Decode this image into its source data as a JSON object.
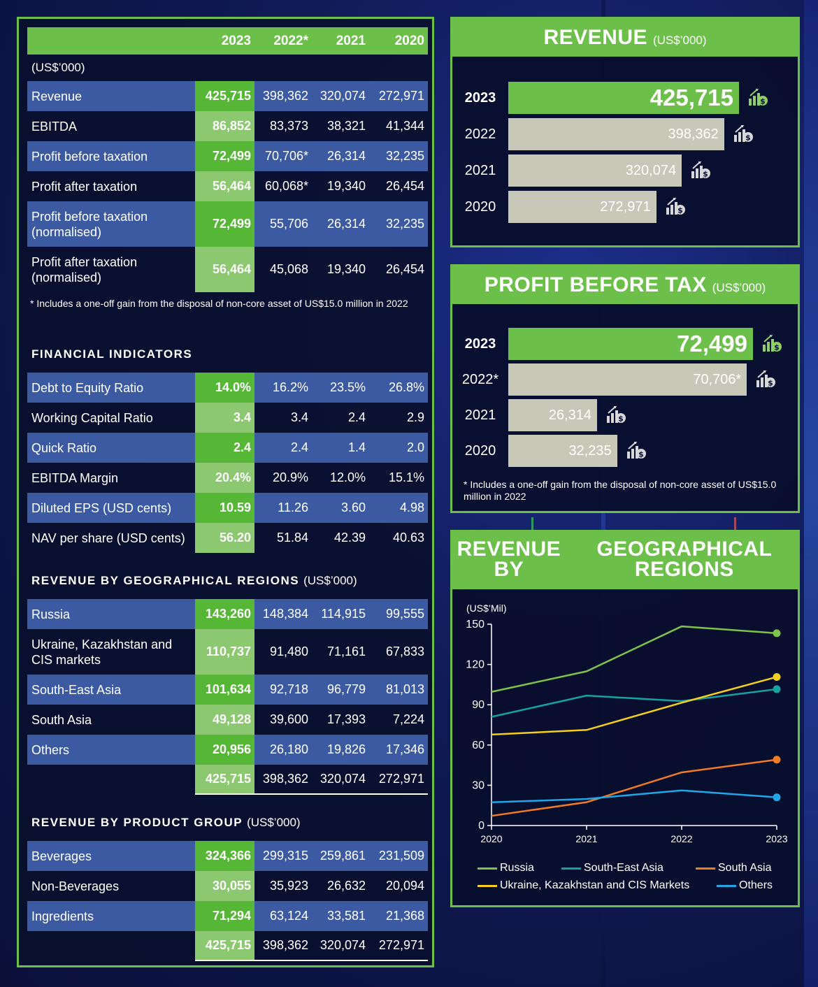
{
  "table_header": {
    "years": [
      "2023",
      "2022*",
      "2021",
      "2020"
    ]
  },
  "unit_label": "(US$’000)",
  "financials": [
    {
      "label": "Revenue",
      "values": [
        "425,715",
        "398,362",
        "320,074",
        "272,971"
      ]
    },
    {
      "label": "EBITDA",
      "values": [
        "86,852",
        "83,373",
        "38,321",
        "41,344"
      ]
    },
    {
      "label": "Profit before taxation",
      "values": [
        "72,499",
        "70,706*",
        "26,314",
        "32,235"
      ]
    },
    {
      "label": "Profit after taxation",
      "values": [
        "56,464",
        "60,068*",
        "19,340",
        "26,454"
      ]
    },
    {
      "label": "Profit before taxation (normalised)",
      "values": [
        "72,499",
        "55,706",
        "26,314",
        "32,235"
      ]
    },
    {
      "label": "Profit after taxation (normalised)",
      "values": [
        "56,464",
        "45,068",
        "19,340",
        "26,454"
      ]
    }
  ],
  "table_footnote": "* Includes a one-off gain from the disposal of non-core asset of US$15.0 million in 2022",
  "indicators_title": "FINANCIAL INDICATORS",
  "indicators": [
    {
      "label": "Debt to Equity Ratio",
      "values": [
        "14.0%",
        "16.2%",
        "23.5%",
        "26.8%"
      ]
    },
    {
      "label": "Working Capital Ratio",
      "values": [
        "3.4",
        "3.4",
        "2.4",
        "2.9"
      ]
    },
    {
      "label": "Quick Ratio",
      "values": [
        "2.4",
        "2.4",
        "1.4",
        "2.0"
      ]
    },
    {
      "label": "EBITDA Margin",
      "values": [
        "20.4%",
        "20.9%",
        "12.0%",
        "15.1%"
      ]
    },
    {
      "label": "Diluted EPS (USD cents)",
      "values": [
        "10.59",
        "11.26",
        "3.60",
        "4.98"
      ]
    },
    {
      "label": "NAV per share (USD cents)",
      "values": [
        "56.20",
        "51.84",
        "42.39",
        "40.63"
      ]
    }
  ],
  "regions_section": {
    "title": "REVENUE BY GEOGRAPHICAL REGIONS",
    "unit": "(US$’000)"
  },
  "regions": [
    {
      "label": "Russia",
      "values": [
        "143,260",
        "148,384",
        "114,915",
        "99,555"
      ]
    },
    {
      "label": "Ukraine, Kazakhstan and CIS markets",
      "values": [
        "110,737",
        "91,480",
        "71,161",
        "67,833"
      ]
    },
    {
      "label": "South-East Asia",
      "values": [
        "101,634",
        "92,718",
        "96,779",
        "81,013"
      ]
    },
    {
      "label": "South Asia",
      "values": [
        "49,128",
        "39,600",
        "17,393",
        "7,224"
      ]
    },
    {
      "label": "Others",
      "values": [
        "20,956",
        "26,180",
        "19,826",
        "17,346"
      ]
    }
  ],
  "regions_total": [
    "425,715",
    "398,362",
    "320,074",
    "272,971"
  ],
  "products_section": {
    "title": "REVENUE BY PRODUCT GROUP",
    "unit": "(US$’000)"
  },
  "products": [
    {
      "label": "Beverages",
      "values": [
        "324,366",
        "299,315",
        "259,861",
        "231,509"
      ]
    },
    {
      "label": "Non-Beverages",
      "values": [
        "30,055",
        "35,923",
        "26,632",
        "20,094"
      ]
    },
    {
      "label": "Ingredients",
      "values": [
        "71,294",
        "63,124",
        "33,581",
        "21,368"
      ]
    }
  ],
  "products_total": [
    "425,715",
    "398,362",
    "320,074",
    "272,971"
  ],
  "revenue_panel": {
    "title": "REVENUE",
    "unit": "(US$’000)"
  },
  "pbt_panel": {
    "title": "PROFIT BEFORE TAX",
    "unit": "(US$’000)",
    "footnote": "* Includes a one-off gain from the disposal of non-core asset of US$15.0 million in 2022"
  },
  "region_chart_panel": {
    "title_line1": "REVENUE BY",
    "title_line2": "GEOGRAPHICAL REGIONS"
  },
  "colors": {
    "green": "#6cc04a",
    "band_blue": "#3c5aa2",
    "russia": "#7dc24b",
    "sea": "#14a3a0",
    "south_asia": "#f07b22",
    "ukraine": "#f4cf1d",
    "others": "#1fa7e8"
  },
  "chart_data": [
    {
      "type": "bar",
      "orientation": "horizontal",
      "categories": [
        "2023",
        "2022",
        "2021",
        "2020"
      ],
      "values": [
        425715,
        398362,
        320074,
        272971
      ],
      "labels": [
        "425,715",
        "398,362",
        "320,074",
        "272,971"
      ],
      "title": "REVENUE",
      "unit": "(US$’000)"
    },
    {
      "type": "bar",
      "orientation": "horizontal",
      "categories": [
        "2023",
        "2022*",
        "2021",
        "2020"
      ],
      "values": [
        72499,
        70706,
        26314,
        32235
      ],
      "labels": [
        "72,499",
        "70,706*",
        "26,314",
        "32,235"
      ],
      "title": "PROFIT BEFORE TAX",
      "unit": "(US$’000)"
    },
    {
      "type": "line",
      "title": "REVENUE BY GEOGRAPHICAL REGIONS",
      "ylabel": "(US$’Mil)",
      "x": [
        "2020",
        "2021",
        "2022",
        "2023"
      ],
      "ylim": [
        0,
        150
      ],
      "yticks": [
        0,
        30,
        60,
        90,
        120,
        150
      ],
      "grid": false,
      "legend_position": "bottom",
      "series": [
        {
          "name": "Russia",
          "color": "#7dc24b",
          "values": [
            99.6,
            114.9,
            148.4,
            143.3
          ]
        },
        {
          "name": "South-East Asia",
          "color": "#14a3a0",
          "values": [
            81.0,
            96.8,
            92.7,
            101.6
          ]
        },
        {
          "name": "South Asia",
          "color": "#f07b22",
          "values": [
            7.2,
            17.4,
            39.6,
            49.1
          ]
        },
        {
          "name": "Ukraine, Kazakhstan and CIS Markets",
          "color": "#f4cf1d",
          "values": [
            67.8,
            71.2,
            91.5,
            110.7
          ]
        },
        {
          "name": "Others",
          "color": "#1fa7e8",
          "values": [
            17.3,
            19.8,
            26.2,
            21.0
          ]
        }
      ]
    }
  ]
}
